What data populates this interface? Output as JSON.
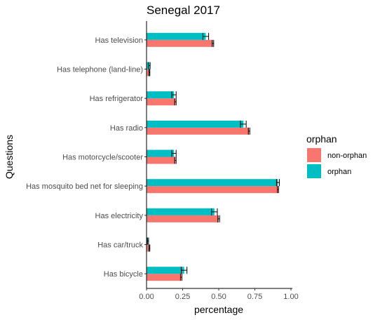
{
  "chart_data": {
    "type": "bar",
    "orientation": "horizontal",
    "title": "Senegal 2017",
    "xlabel": "percentage",
    "ylabel": "Questions",
    "xlim": [
      0,
      1.0
    ],
    "xticks": [
      "0.00",
      "0.25",
      "0.50",
      "0.75",
      "1.00"
    ],
    "xtick_values": [
      0,
      0.25,
      0.5,
      0.75,
      1.0
    ],
    "grid": false,
    "legend": {
      "title": "orphan",
      "position": "right",
      "entries": [
        "non-orphan",
        "orphan"
      ]
    },
    "categories": [
      "Has television",
      "Has telephone (land-line)",
      "Has refrigerator",
      "Has radio",
      "Has motorcycle/scooter",
      "Has mosquito bed net for sleeping",
      "Has electricity",
      "Has car/truck",
      "Has bicycle"
    ],
    "series": [
      {
        "name": "non-orphan",
        "color": "#F8766D",
        "values": [
          0.46,
          0.02,
          0.2,
          0.71,
          0.2,
          0.91,
          0.5,
          0.02,
          0.24
        ],
        "errors": [
          0.005,
          0.003,
          0.005,
          0.005,
          0.005,
          0.004,
          0.006,
          0.003,
          0.005
        ]
      },
      {
        "name": "orphan",
        "color": "#00BFC4",
        "values": [
          0.41,
          0.02,
          0.19,
          0.67,
          0.19,
          0.91,
          0.47,
          0.01,
          0.26
        ],
        "errors": [
          0.02,
          0.005,
          0.015,
          0.02,
          0.015,
          0.01,
          0.02,
          0.004,
          0.02
        ]
      }
    ]
  }
}
